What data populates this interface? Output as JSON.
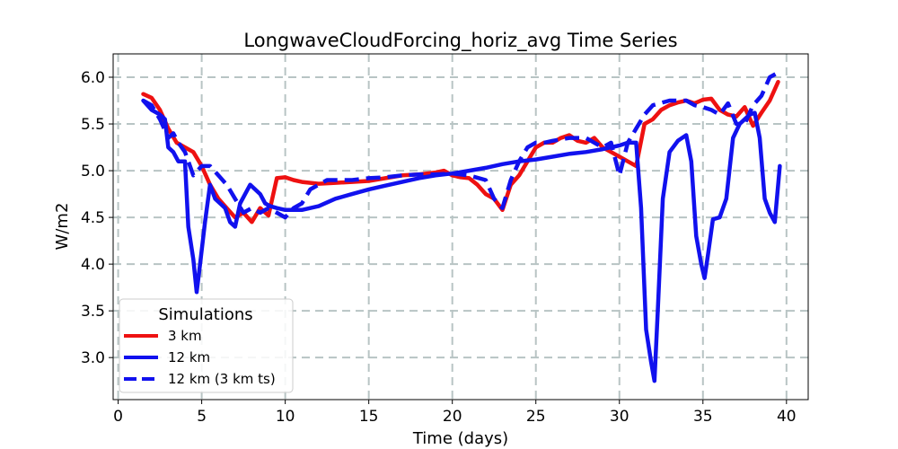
{
  "chart_data": {
    "type": "line",
    "title": "LongwaveCloudForcing_horiz_avg Time Series",
    "xlabel": "Time (days)",
    "ylabel": "W/m2",
    "xlim": [
      -0.3,
      41.3
    ],
    "ylim": [
      2.55,
      6.25
    ],
    "xticks": [
      0,
      5,
      10,
      15,
      20,
      25,
      30,
      35,
      40
    ],
    "xtick_labels": [
      "0",
      "5",
      "10",
      "15",
      "20",
      "25",
      "30",
      "35",
      "40"
    ],
    "yticks": [
      3.0,
      3.5,
      4.0,
      4.5,
      5.0,
      5.5,
      6.0
    ],
    "ytick_labels": [
      "3.0",
      "3.5",
      "4.0",
      "4.5",
      "5.0",
      "5.5",
      "6.0"
    ],
    "grid": true,
    "legend": {
      "title": "Simulations",
      "placement": "lower-left"
    },
    "series": [
      {
        "name": "3 km",
        "color": "#ee1111",
        "style": "solid",
        "x": [
          1.5,
          2.0,
          2.5,
          3.0,
          3.5,
          4.0,
          4.5,
          5.0,
          5.5,
          6.0,
          6.5,
          7.0,
          7.5,
          8.0,
          8.5,
          9.0,
          9.5,
          10.0,
          10.5,
          11.0,
          12.0,
          13.0,
          14.0,
          15.0,
          16.0,
          17.0,
          18.0,
          19.0,
          19.5,
          20.0,
          20.5,
          21.0,
          21.5,
          22.0,
          22.5,
          23.0,
          23.5,
          24.0,
          24.5,
          25.0,
          25.5,
          26.0,
          26.5,
          27.0,
          27.5,
          28.0,
          28.5,
          29.0,
          29.5,
          30.0,
          30.5,
          31.0,
          31.5,
          32.0,
          32.5,
          33.0,
          33.5,
          34.0,
          34.5,
          35.0,
          35.5,
          36.0,
          36.5,
          37.0,
          37.5,
          38.0,
          38.5,
          39.0,
          39.5
        ],
        "values": [
          5.82,
          5.78,
          5.65,
          5.45,
          5.3,
          5.25,
          5.2,
          5.05,
          4.85,
          4.7,
          4.6,
          4.5,
          4.55,
          4.45,
          4.6,
          4.52,
          4.92,
          4.93,
          4.9,
          4.88,
          4.86,
          4.87,
          4.88,
          4.89,
          4.92,
          4.95,
          4.96,
          4.98,
          5.0,
          4.95,
          4.93,
          4.92,
          4.85,
          4.75,
          4.7,
          4.58,
          4.85,
          4.95,
          5.1,
          5.25,
          5.3,
          5.3,
          5.35,
          5.38,
          5.32,
          5.3,
          5.35,
          5.25,
          5.2,
          5.15,
          5.1,
          5.05,
          5.5,
          5.55,
          5.65,
          5.7,
          5.73,
          5.75,
          5.72,
          5.76,
          5.77,
          5.65,
          5.6,
          5.58,
          5.68,
          5.48,
          5.62,
          5.75,
          5.95
        ]
      },
      {
        "name": "12 km",
        "color": "#1111ee",
        "style": "solid",
        "x": [
          1.5,
          2.0,
          2.5,
          2.8,
          3.0,
          3.3,
          3.6,
          4.0,
          4.2,
          4.5,
          4.7,
          4.9,
          5.2,
          5.5,
          5.8,
          6.1,
          6.4,
          6.7,
          7.0,
          7.3,
          7.6,
          7.9,
          8.2,
          8.5,
          8.8,
          9.1,
          9.5,
          10.0,
          10.5,
          11.0,
          11.5,
          12.0,
          13.0,
          14.0,
          15.0,
          16.0,
          17.0,
          18.0,
          19.0,
          20.0,
          21.0,
          22.0,
          23.0,
          24.0,
          25.0,
          26.0,
          27.0,
          28.0,
          29.0,
          29.5,
          30.0,
          30.5,
          31.0,
          31.3,
          31.6,
          31.9,
          32.1,
          32.3,
          32.6,
          33.0,
          33.5,
          34.0,
          34.3,
          34.6,
          34.9,
          35.1,
          35.3,
          35.6,
          36.0,
          36.4,
          36.8,
          37.2,
          37.5,
          37.8,
          38.1,
          38.4,
          38.7,
          39.0,
          39.3,
          39.6
        ],
        "values": [
          5.75,
          5.65,
          5.6,
          5.55,
          5.25,
          5.2,
          5.1,
          5.1,
          4.4,
          4.05,
          3.7,
          4.0,
          4.45,
          4.85,
          4.7,
          4.65,
          4.6,
          4.45,
          4.4,
          4.65,
          4.75,
          4.85,
          4.8,
          4.75,
          4.65,
          4.62,
          4.6,
          4.58,
          4.58,
          4.58,
          4.6,
          4.62,
          4.7,
          4.75,
          4.8,
          4.84,
          4.88,
          4.92,
          4.95,
          4.97,
          5.0,
          5.03,
          5.07,
          5.1,
          5.12,
          5.15,
          5.18,
          5.2,
          5.23,
          5.25,
          5.27,
          5.3,
          5.3,
          4.6,
          3.3,
          2.95,
          2.75,
          3.5,
          4.7,
          5.2,
          5.32,
          5.38,
          5.1,
          4.3,
          4.0,
          3.85,
          4.1,
          4.48,
          4.5,
          4.7,
          5.35,
          5.5,
          5.55,
          5.6,
          5.62,
          5.35,
          4.7,
          4.55,
          4.45,
          5.05
        ]
      },
      {
        "name": "12 km (3 km ts)",
        "color": "#1111ee",
        "style": "dashed",
        "x": [
          1.5,
          2.0,
          2.5,
          3.0,
          3.3,
          3.6,
          4.0,
          4.5,
          5.0,
          5.5,
          6.0,
          6.5,
          7.0,
          7.5,
          8.0,
          8.5,
          9.0,
          9.5,
          10.0,
          10.5,
          11.0,
          11.5,
          12.0,
          12.5,
          13.0,
          14.0,
          15.0,
          16.0,
          17.0,
          18.0,
          19.0,
          20.0,
          21.0,
          22.0,
          22.5,
          23.0,
          23.5,
          24.0,
          24.5,
          25.0,
          25.5,
          26.0,
          27.0,
          28.0,
          28.5,
          29.0,
          29.5,
          30.0,
          30.5,
          31.0,
          31.5,
          32.0,
          33.0,
          34.0,
          34.5,
          35.0,
          35.5,
          36.0,
          36.5,
          37.0,
          37.5,
          38.0,
          38.5,
          39.0,
          39.5
        ],
        "values": [
          5.75,
          5.7,
          5.55,
          5.35,
          5.4,
          5.3,
          5.2,
          4.95,
          5.05,
          5.05,
          4.95,
          4.85,
          4.7,
          4.55,
          4.6,
          4.55,
          4.6,
          4.55,
          4.5,
          4.6,
          4.65,
          4.8,
          4.85,
          4.9,
          4.9,
          4.9,
          4.92,
          4.93,
          4.95,
          4.96,
          4.96,
          4.97,
          4.95,
          4.9,
          4.7,
          4.6,
          4.9,
          5.1,
          5.25,
          5.3,
          5.3,
          5.32,
          5.35,
          5.35,
          5.3,
          5.25,
          5.3,
          4.95,
          5.3,
          5.45,
          5.6,
          5.7,
          5.75,
          5.75,
          5.7,
          5.68,
          5.65,
          5.6,
          5.72,
          5.5,
          5.5,
          5.7,
          5.8,
          6.0,
          6.05
        ]
      }
    ]
  }
}
